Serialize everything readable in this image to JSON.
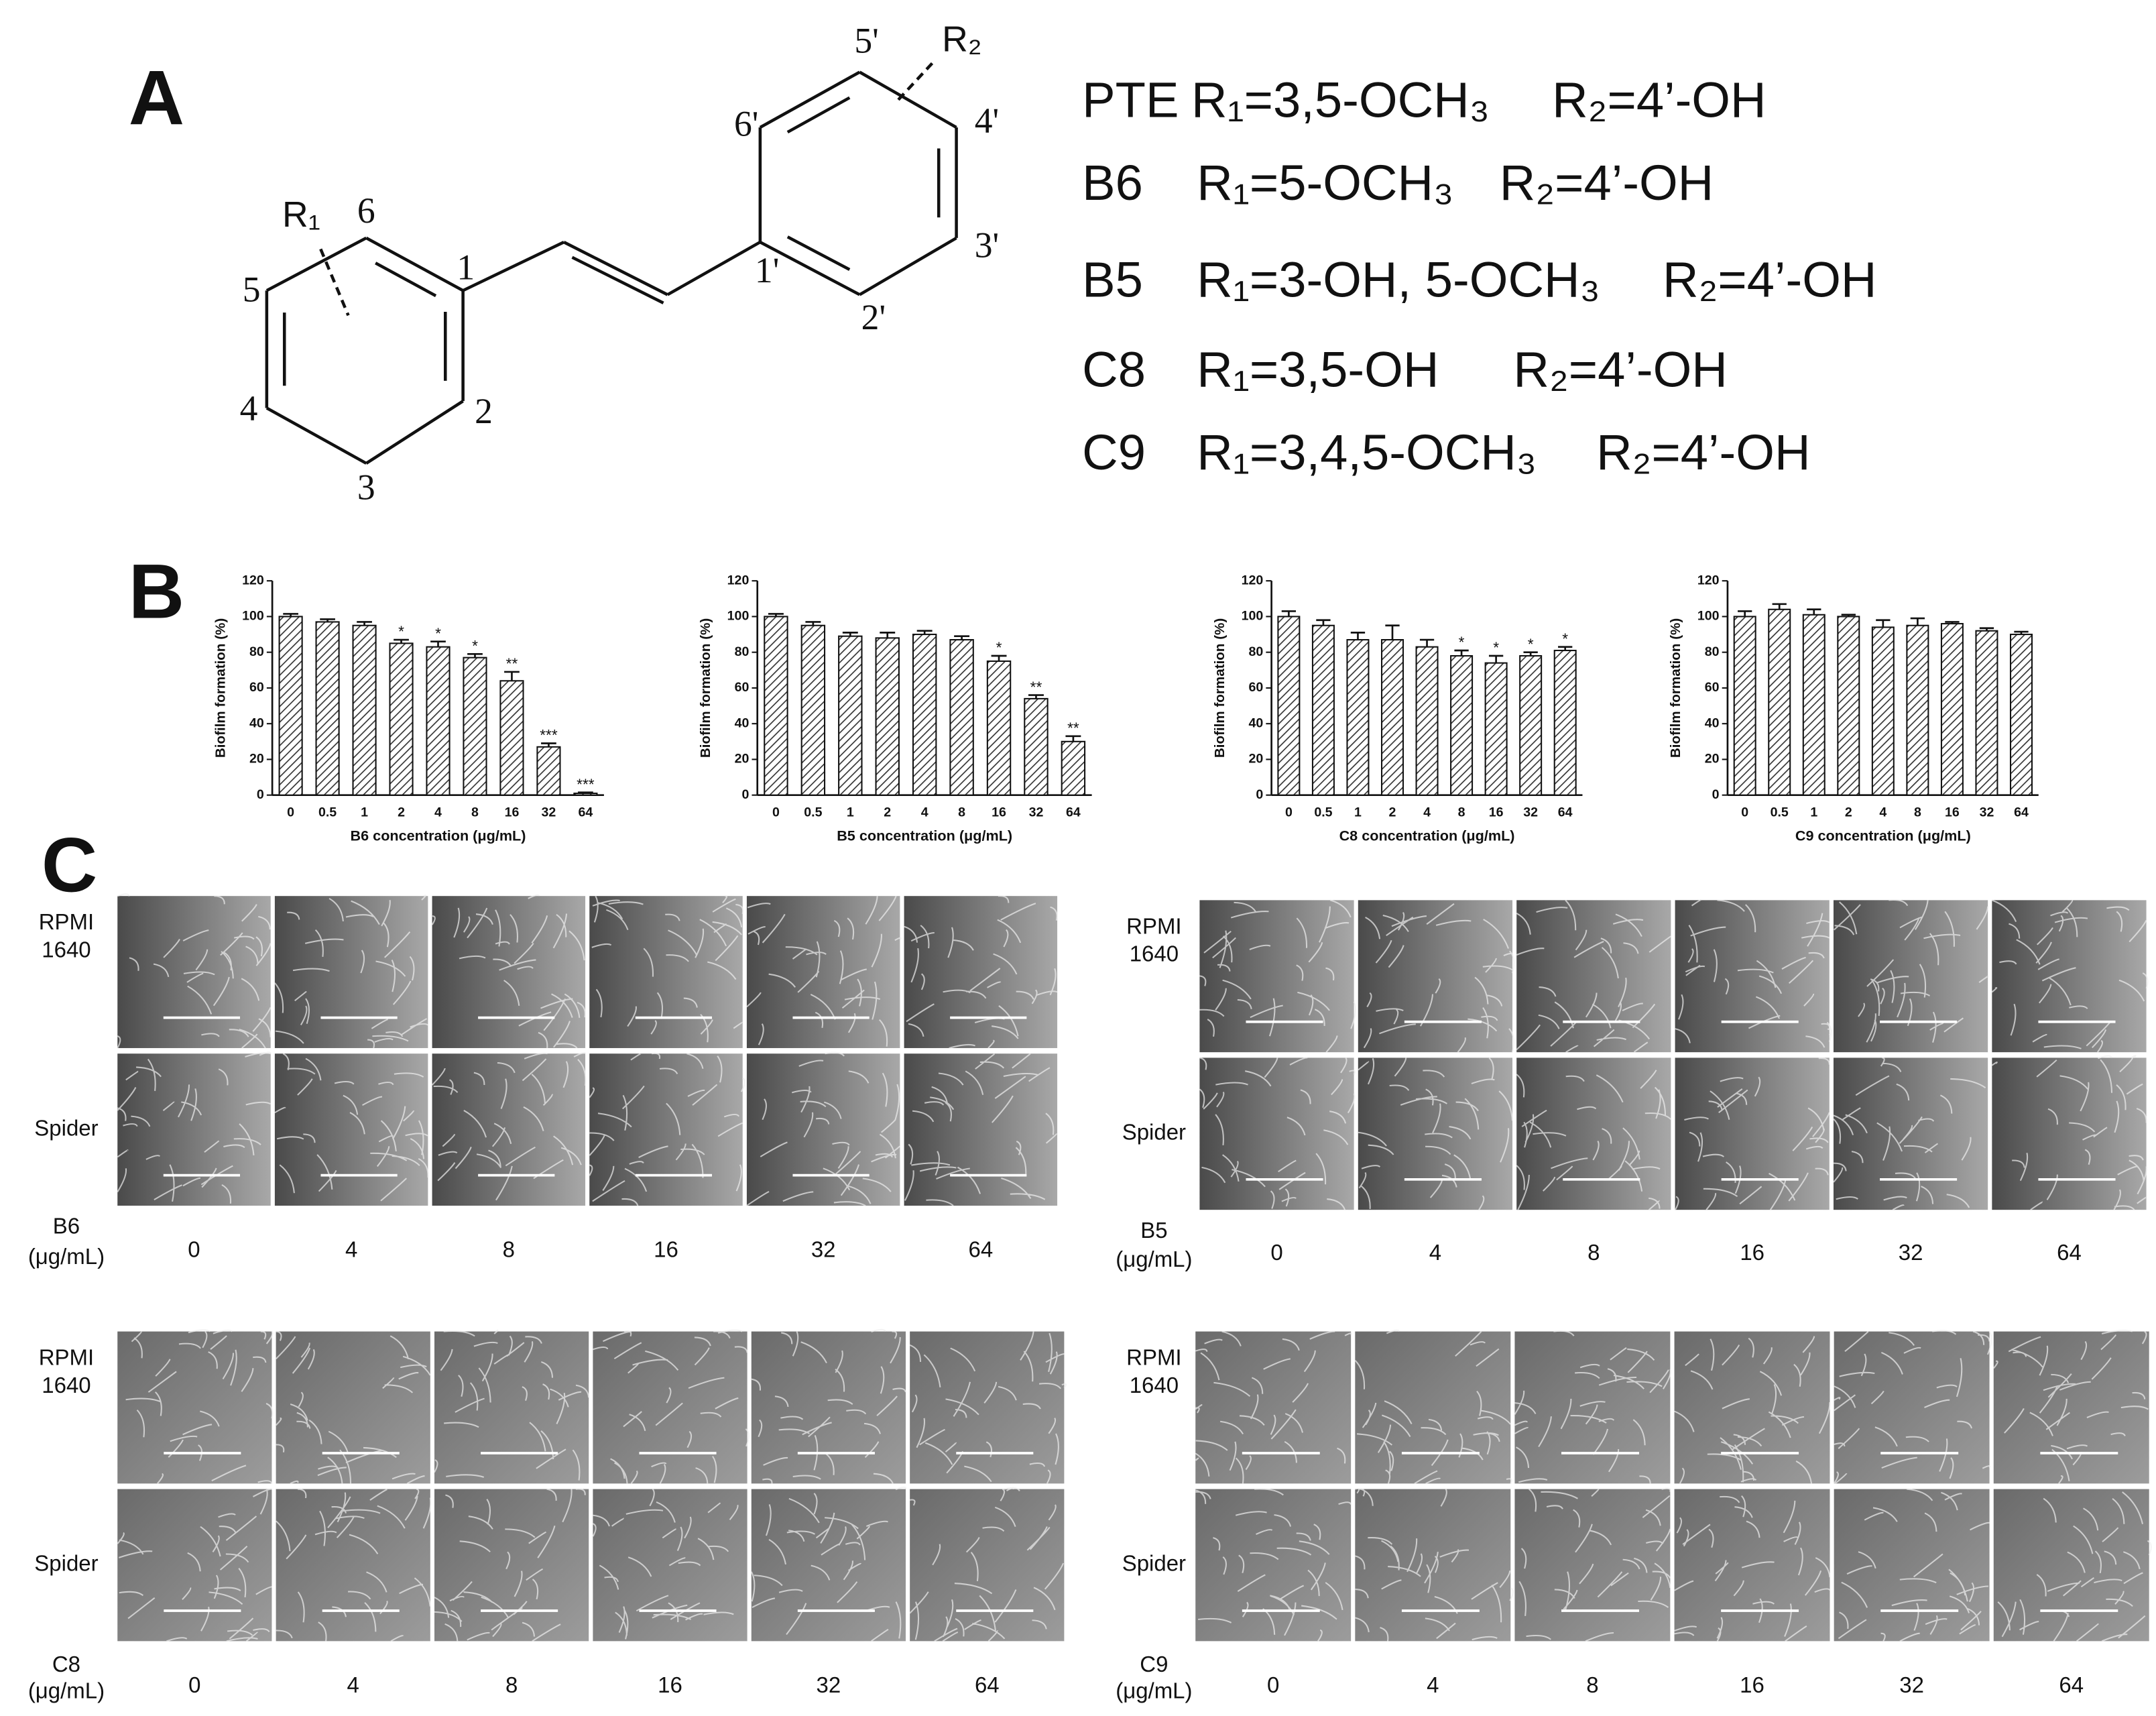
{
  "panels": {
    "A": {
      "label": "A",
      "atoms": [
        "1",
        "2",
        "3",
        "4",
        "5",
        "6",
        "R₁",
        "1'",
        "2'",
        "3'",
        "4'",
        "5'",
        "6'",
        "R₂"
      ],
      "compounds": [
        {
          "name": "PTE",
          "r1": "R₁=3,5-OCH₃",
          "r2": "R₂=4’-OH"
        },
        {
          "name": "B6",
          "r1": "R₁=5-OCH₃",
          "r2": "R₂=4’-OH"
        },
        {
          "name": "B5",
          "r1": "R₁=3-OH, 5-OCH₃",
          "r2": "R₂=4’-OH"
        },
        {
          "name": "C8",
          "r1": "R₁=3,5-OH",
          "r2": "R₂=4’-OH"
        },
        {
          "name": "C9",
          "r1": "R₁=3,4,5-OCH₃",
          "r2": "R₂=4’-OH"
        }
      ]
    },
    "B": {
      "label": "B"
    },
    "C": {
      "label": "C",
      "row_labels": [
        [
          "RPMI",
          "1640"
        ],
        [
          "Spider"
        ]
      ],
      "groups": [
        {
          "compound": "B6",
          "unit": "(μg/mL)",
          "concentrations": [
            0,
            4,
            8,
            16,
            32,
            64
          ]
        },
        {
          "compound": "B5",
          "unit": "(μg/mL)",
          "concentrations": [
            0,
            4,
            8,
            16,
            32,
            64
          ]
        },
        {
          "compound": "C8",
          "unit": "(μg/mL)",
          "concentrations": [
            0,
            4,
            8,
            16,
            32,
            64
          ]
        },
        {
          "compound": "C9",
          "unit": "(μg/mL)",
          "concentrations": [
            0,
            4,
            8,
            16,
            32,
            64
          ]
        }
      ]
    }
  },
  "chart_data": [
    {
      "type": "bar",
      "ylabel": "Biofilm formation (%)",
      "xlabel": "B6 concentration (μg/mL)",
      "color": "#333333",
      "categories": [
        "0",
        "0.5",
        "1",
        "2",
        "4",
        "8",
        "16",
        "32",
        "64"
      ],
      "values": [
        100,
        97,
        95,
        85,
        83,
        77,
        64,
        27,
        1
      ],
      "errors": [
        1.5,
        1.5,
        2,
        2,
        3,
        2,
        5,
        2,
        0.5
      ],
      "significance": [
        null,
        null,
        null,
        "*",
        "*",
        "*",
        "**",
        "***",
        "***"
      ],
      "ylim": [
        0,
        120
      ],
      "yticks": [
        0,
        20,
        40,
        60,
        80,
        100,
        120
      ]
    },
    {
      "type": "bar",
      "ylabel": "Biofilm formation (%)",
      "xlabel": "B5 concentration (μg/mL)",
      "color": "#333333",
      "categories": [
        "0",
        "0.5",
        "1",
        "2",
        "4",
        "8",
        "16",
        "32",
        "64"
      ],
      "values": [
        100,
        95,
        89,
        88,
        90,
        87,
        75,
        54,
        30
      ],
      "errors": [
        1.5,
        2,
        2,
        3,
        2,
        2,
        3,
        2,
        3
      ],
      "significance": [
        null,
        null,
        null,
        null,
        null,
        null,
        "*",
        "**",
        "**"
      ],
      "ylim": [
        0,
        120
      ],
      "yticks": [
        0,
        20,
        40,
        60,
        80,
        100,
        120
      ]
    },
    {
      "type": "bar",
      "ylabel": "Biofilm formation (%)",
      "xlabel": "C8 concentration (μg/mL)",
      "color": "#333333",
      "categories": [
        "0",
        "0.5",
        "1",
        "2",
        "4",
        "8",
        "16",
        "32",
        "64"
      ],
      "values": [
        100,
        95,
        87,
        87,
        83,
        78,
        74,
        78,
        81
      ],
      "errors": [
        3,
        3,
        4,
        8,
        4,
        3,
        4,
        2,
        2
      ],
      "significance": [
        null,
        null,
        null,
        null,
        null,
        "*",
        "*",
        "*",
        "*"
      ],
      "ylim": [
        0,
        120
      ],
      "yticks": [
        0,
        20,
        40,
        60,
        80,
        100,
        120
      ]
    },
    {
      "type": "bar",
      "ylabel": "Biofilm formation (%)",
      "xlabel": "C9 concentration (μg/mL)",
      "color": "#333333",
      "categories": [
        "0",
        "0.5",
        "1",
        "2",
        "4",
        "8",
        "16",
        "32",
        "64"
      ],
      "values": [
        100,
        104,
        101,
        100,
        94,
        95,
        96,
        92,
        90
      ],
      "errors": [
        3,
        3,
        3,
        1,
        4,
        4,
        1,
        1.5,
        1.5
      ],
      "significance": [
        null,
        null,
        null,
        null,
        null,
        null,
        null,
        null,
        null
      ],
      "ylim": [
        0,
        120
      ],
      "yticks": [
        0,
        20,
        40,
        60,
        80,
        100,
        120
      ]
    }
  ]
}
